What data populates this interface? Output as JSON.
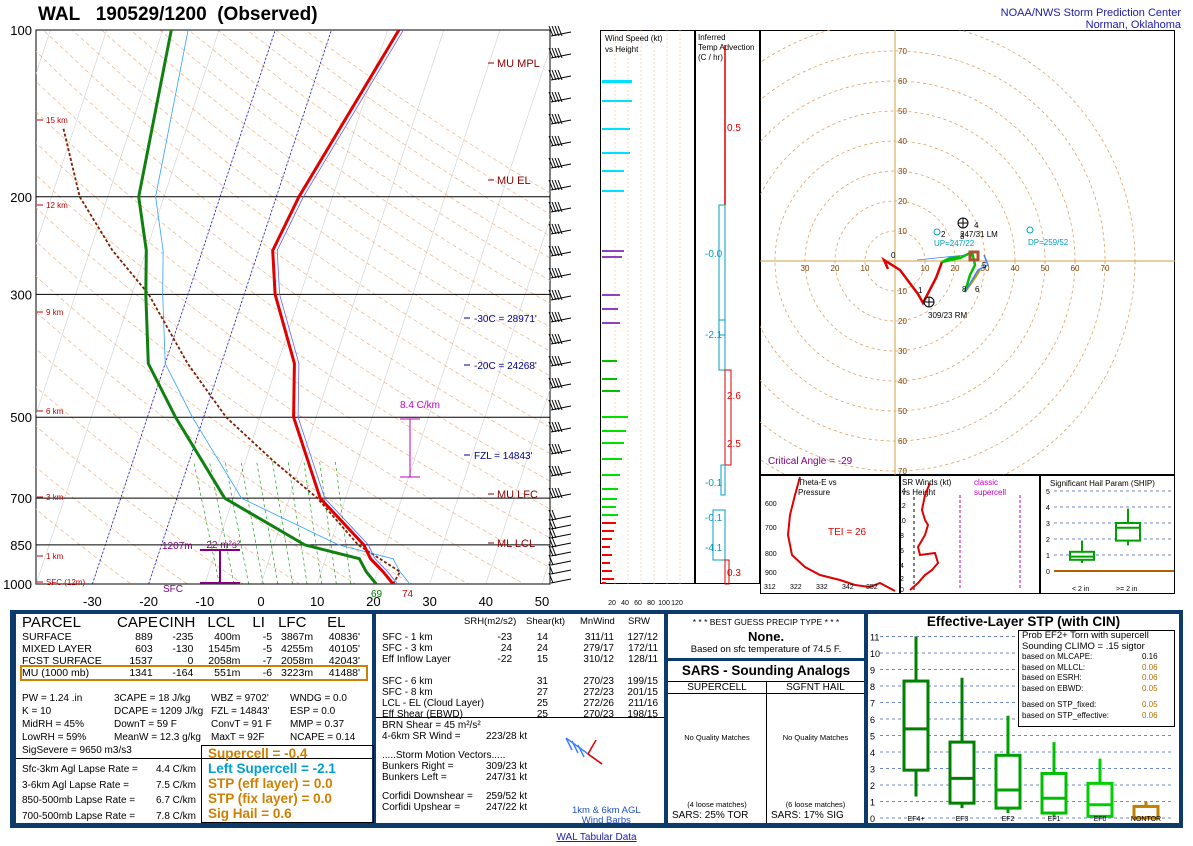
{
  "header": {
    "title": "WAL   190529/1200  (Observed)",
    "org_line1": "NOAA/NWS Storm Prediction Center",
    "org_line2": "Norman, Oklahoma"
  },
  "skewt": {
    "pressure_labels": [
      "100",
      "200",
      "300",
      "500",
      "700",
      "850",
      "1000"
    ],
    "height_labels": [
      "15 km",
      "12 km",
      "9 km",
      "6 km",
      "3 km",
      "1 km",
      "SFC (12m)"
    ],
    "temp_labels": [
      "-30",
      "-20",
      "-10",
      "0",
      "10",
      "20",
      "30",
      "40",
      "50"
    ],
    "annotations": {
      "mu_mpl": "MU MPL",
      "mu_el": "MU EL",
      "mu_lfc": "MU LFC",
      "ml_lcl": "ML LCL",
      "m30c": "-30C = 28971'",
      "m20c": "-20C = 24268'",
      "fzl": "FZL = 14843'",
      "lapse": "8.4 C/km",
      "eff_base": "1207m",
      "eff_srh": "-22 m²s²",
      "sfc": "SFC",
      "sfc_td": "69",
      "sfc_t": "74"
    }
  },
  "wind_speed_panel": {
    "title1": "Wind Speed (kt)",
    "title2": "vs Height",
    "ticks": [
      "20",
      "40",
      "60",
      "80",
      "100",
      "120"
    ]
  },
  "temp_adv_panel": {
    "title1": "Inferred",
    "title2": "Temp Advection",
    "title3": "(C / hr)",
    "labels": [
      "0.5",
      "-0.0",
      "-2.1",
      "2.6",
      "2.5",
      "-0.1",
      "-0.1",
      "-4.1",
      "0.3"
    ]
  },
  "hodograph": {
    "ring_labels": [
      "10",
      "20",
      "30",
      "40",
      "50",
      "60",
      "70"
    ],
    "x_labels": [
      "30",
      "20",
      "10",
      "10",
      "20",
      "30",
      "40",
      "50",
      "60",
      "70"
    ],
    "point_labels": [
      "0",
      "1",
      "2",
      "3",
      "4",
      "5",
      "6",
      "8"
    ],
    "lm_label": "247/31 LM",
    "rm_label": "309/23 RM",
    "up_label": "UP=247/22",
    "dp_label": "DP=259/52",
    "critical_angle": "Critical Angle = -29"
  },
  "theta_panel": {
    "title1": "Theta-E vs",
    "title2": "Pressure",
    "tei": "TEI = 26",
    "p_ticks": [
      "600",
      "700",
      "800",
      "900"
    ],
    "x_ticks": [
      "312",
      "322",
      "332",
      "342",
      "352"
    ]
  },
  "srwind_panel": {
    "title1": "SR Winds (kt)",
    "title2": "vs Height",
    "classic1": "classic",
    "classic2": "supercell",
    "h_ticks": [
      "14",
      "12",
      "10",
      "8",
      "6",
      "4",
      "2",
      "0"
    ]
  },
  "ship_panel": {
    "title": "Significant Hail Param (SHIP)",
    "y_ticks": [
      "5",
      "4",
      "3",
      "2",
      "1",
      "0"
    ],
    "x1": "< 2 in",
    "x2": ">= 2 in"
  },
  "parcel_table": {
    "headers": [
      "PARCEL",
      "CAPE",
      "CINH",
      "LCL",
      "LI",
      "LFC",
      "EL"
    ],
    "rows": [
      [
        "SURFACE",
        "889",
        "-235",
        "400m",
        "-5",
        "3867m",
        "40836'"
      ],
      [
        "MIXED LAYER",
        "603",
        "-130",
        "1545m",
        "-5",
        "4255m",
        "40105'"
      ],
      [
        "FCST SURFACE",
        "1537",
        "0",
        "2058m",
        "-7",
        "2058m",
        "42043'"
      ],
      [
        "MU   (1000 mb)",
        "1341",
        "-164",
        "551m",
        "-6",
        "3223m",
        "41488'"
      ]
    ]
  },
  "indices": {
    "col1": [
      "PW = 1.24 .in",
      "K = 10",
      "MidRH = 45%",
      "LowRH = 59%",
      "SigSevere = 9650 m3/s3"
    ],
    "col2": [
      "3CAPE = 18 J/kg",
      "DCAPE = 1209 J/kg",
      "DownT = 59 F",
      "MeanW = 12.3 g/kg"
    ],
    "col3": [
      "WBZ = 9702'",
      "FZL = 14843'",
      "ConvT = 91 F",
      "MaxT = 92F"
    ],
    "col4": [
      "WNDG = 0.0",
      "ESP = 0.0",
      "MMP = 0.37",
      "NCAPE = 0.14"
    ]
  },
  "lapse_rates": [
    [
      "Sfc-3km Agl Lapse Rate =",
      "4.4 C/km"
    ],
    [
      "3-6km Agl Lapse Rate =",
      "7.5 C/km"
    ],
    [
      "850-500mb Lapse Rate =",
      "6.7 C/km"
    ],
    [
      "700-500mb Lapse Rate =",
      "7.8 C/km"
    ]
  ],
  "composite": {
    "supercell": "Supercell = -0.4",
    "left_supercell": "Left Supercell = -2.1",
    "stp_eff": "STP (eff layer) = 0.0",
    "stp_fix": "STP (fix layer) = 0.0",
    "sig_hail": "Sig Hail = 0.6"
  },
  "kinematics": {
    "headers": [
      "SRH(m2/s2)",
      "Shear(kt)",
      "MnWind",
      "SRW"
    ],
    "rows": [
      [
        "SFC - 1 km",
        "-23",
        "14",
        "311/11",
        "127/12"
      ],
      [
        "SFC - 3 km",
        "24",
        "24",
        "279/17",
        "172/11"
      ],
      [
        "Eff Inflow Layer",
        "-22",
        "15",
        "310/12",
        "128/11"
      ],
      [
        "",
        "",
        "",
        "",
        ""
      ],
      [
        "SFC - 6 km",
        "",
        "31",
        "270/23",
        "199/15"
      ],
      [
        "SFC - 8 km",
        "",
        "27",
        "272/23",
        "201/15"
      ],
      [
        "LCL - EL (Cloud Layer)",
        "",
        "25",
        "272/26",
        "211/16"
      ],
      [
        "Eff Shear (EBWD)",
        "",
        "25",
        "270/23",
        "198/15"
      ]
    ],
    "brn": "BRN Shear = 45 m²/s²",
    "sr_wind": "4-6km SR Wind =",
    "sr_wind_val": "223/28 kt",
    "storm_motion": ".....Storm Motion Vectors.....",
    "bunkers_right": "Bunkers Right =",
    "bunkers_right_val": "309/23 kt",
    "bunkers_left": "Bunkers Left =",
    "bunkers_left_val": "247/31 kt",
    "corfidi_down": "Corfidi Downshear =",
    "corfidi_down_val": "259/52 kt",
    "corfidi_up": "Corfidi Upshear =",
    "corfidi_up_val": "247/22 kt",
    "barb_note1": "1km & 6km AGL",
    "barb_note2": "Wind Barbs"
  },
  "precip": {
    "title": "* * * BEST GUESS PRECIP TYPE * * *",
    "value": "None.",
    "note": "Based on sfc temperature of 74.5 F."
  },
  "sars": {
    "title": "SARS - Sounding Analogs",
    "supercell": "SUPERCELL",
    "sgfnt_hail": "SGFNT HAIL",
    "no_match1": "No Quality Matches",
    "no_match2": "No Quality Matches",
    "loose1": "(4 loose matches)",
    "loose2": "(6 loose matches)",
    "sars1": "SARS:  25% TOR",
    "sars2": "SARS:  17% SIG"
  },
  "stp_panel": {
    "title": "Effective-Layer STP (with CIN)",
    "prob1": "Prob EF2+ Torn with supercell",
    "prob2": "Sounding CLIMO = .15 sigtor",
    "based": [
      [
        "based on MLCAPE:",
        "0.16"
      ],
      [
        "based on MLLCL:",
        "0.06"
      ],
      [
        "based on ESRH:",
        "0.06"
      ],
      [
        "based on EBWD:",
        "0.05"
      ],
      [
        "based on STP_fixed:",
        "0.05"
      ],
      [
        "based on STP_effective:",
        "0.06"
      ]
    ],
    "y_ticks": [
      "11",
      "10",
      "9",
      "8",
      "7",
      "6",
      "5",
      "4",
      "3",
      "2",
      "1",
      "0"
    ],
    "categories": [
      "EF4+",
      "EF3",
      "EF2",
      "EF1",
      "EF0",
      "NONTOR"
    ]
  },
  "footer": {
    "link": "WAL Tabular Data"
  },
  "chart_data": [
    {
      "type": "line",
      "title": "WAL   190529/1200  (Observed)",
      "xlabel": "",
      "ylabel": "",
      "ylim": [
        1000,
        100
      ],
      "yscale": "log",
      "xlim": [
        -30,
        50
      ],
      "series": [
        {
          "name": "",
          "x": [
            23.5,
            21,
            18,
            16,
            5.5,
            -4,
            -7,
            -14.5,
            -17.5,
            -16,
            -8
          ],
          "y": [
            1000,
            950,
            900,
            850,
            700,
            500,
            400,
            300,
            250,
            200,
            100
          ]
        },
        {
          "name": "",
          "x": [
            20.5,
            18,
            16,
            5.5,
            -11.5,
            -25,
            -33,
            -37.5,
            -40,
            -44.5,
            -48.5
          ],
          "y": [
            1000,
            950,
            900,
            850,
            700,
            500,
            400,
            300,
            250,
            200,
            100
          ]
        }
      ]
    },
    {
      "type": "box",
      "title": "Effective-Layer STP (with CIN)",
      "categories": [
        "EF4+",
        "EF3",
        "EF2",
        "EF1",
        "EF0",
        "NONTOR"
      ],
      "series": [
        {
          "name": "",
          "whisker_low": [
            1.3,
            0.6,
            0.3,
            0.1,
            0.0,
            0.0
          ],
          "q1": [
            2.9,
            0.9,
            0.6,
            0.3,
            0.1,
            0.0
          ],
          "median": [
            5.4,
            2.4,
            1.7,
            1.2,
            0.8,
            0.0
          ],
          "q3": [
            8.3,
            4.6,
            3.8,
            2.7,
            2.1,
            0.7
          ],
          "whisker_high": [
            11.0,
            8.5,
            6.2,
            4.6,
            3.6,
            1.0
          ]
        }
      ],
      "ylim": [
        0,
        11
      ]
    },
    {
      "type": "box",
      "title": "Significant Hail Param (SHIP)",
      "categories": [
        "< 2 in",
        ">= 2 in"
      ],
      "series": [
        {
          "name": "",
          "whisker_low": [
            0.5,
            1.6
          ],
          "q1": [
            0.7,
            1.9
          ],
          "median": [
            0.9,
            2.7
          ],
          "q3": [
            1.2,
            3.0
          ],
          "whisker_high": [
            1.9,
            3.9
          ]
        }
      ],
      "ylim": [
        0,
        5
      ]
    }
  ]
}
